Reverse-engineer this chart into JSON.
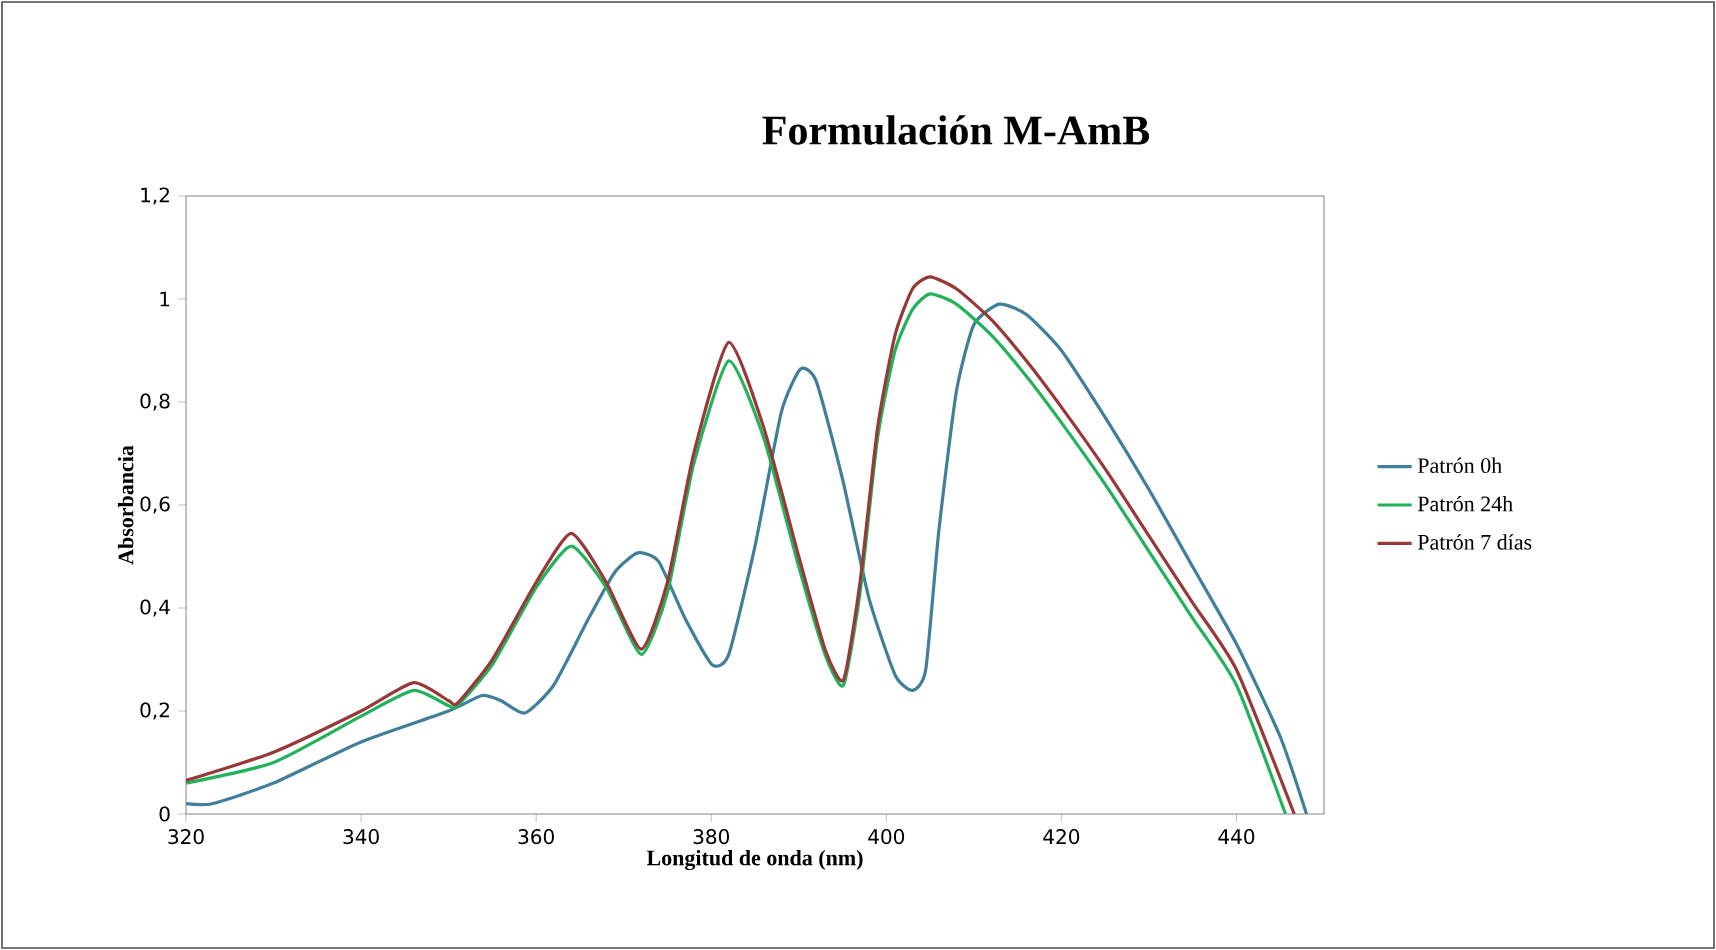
{
  "chart_data": {
    "type": "line",
    "title": "**Formulación M-AmB**",
    "xlabel": "**Longitud de onda (nm)**",
    "ylabel": "**Absorbancia**",
    "xlim": [
      320,
      450
    ],
    "xticks": [
      320,
      340,
      360,
      380,
      400,
      420,
      440
    ],
    "ylim": [
      0,
      1.2
    ],
    "yticks": [
      0,
      {
        "value": 0.2,
        "label": "0,2"
      },
      {
        "value": 0.4,
        "label": "0,4"
      },
      {
        "value": 0.6,
        "label": "0,6"
      },
      {
        "value": 0.8,
        "label": "0,8"
      },
      1,
      {
        "value": 1.2,
        "label": "1,2"
      }
    ],
    "grid": false,
    "legend": "right",
    "series": [
      {
        "name": "Patrón 0h",
        "color": "#3f7f9b",
        "x": [
          320,
          323,
          330,
          340,
          350,
          353.8,
          356,
          358.7,
          362,
          366,
          369,
          371.6,
          374,
          377,
          380.1,
          382,
          385,
          388,
          390.2,
          392,
          395,
          398,
          401,
          403,
          404.5,
          406,
          408,
          410,
          412.9,
          416,
          420,
          425,
          430,
          435,
          440,
          445,
          448
        ],
        "values": [
          0.02,
          0.02,
          0.06,
          0.14,
          0.2,
          0.23,
          0.22,
          0.196,
          0.25,
          0.38,
          0.47,
          0.507,
          0.49,
          0.38,
          0.29,
          0.31,
          0.52,
          0.78,
          0.864,
          0.84,
          0.65,
          0.42,
          0.27,
          0.24,
          0.28,
          0.55,
          0.82,
          0.95,
          0.99,
          0.97,
          0.9,
          0.77,
          0.63,
          0.48,
          0.33,
          0.15,
          0
        ]
      },
      {
        "name": "Patrón 24h",
        "color": "#22b35a",
        "x": [
          320,
          330,
          340,
          346,
          350,
          351,
          355,
          360,
          364,
          368,
          372,
          375,
          378,
          382,
          386,
          390,
          393,
          395.1,
          397,
          399,
          401,
          403,
          405,
          408,
          412,
          416,
          420,
          425,
          430,
          435,
          440,
          445.6
        ],
        "values": [
          0.06,
          0.1,
          0.19,
          0.24,
          0.21,
          0.21,
          0.29,
          0.44,
          0.52,
          0.44,
          0.31,
          0.43,
          0.68,
          0.88,
          0.73,
          0.48,
          0.31,
          0.25,
          0.43,
          0.73,
          0.9,
          0.98,
          1.01,
          0.99,
          0.93,
          0.85,
          0.76,
          0.64,
          0.51,
          0.38,
          0.25,
          0
        ]
      },
      {
        "name": "Patrón 7 días",
        "color": "#983838",
        "x": [
          320,
          330,
          340,
          346,
          350,
          351,
          355,
          360,
          364,
          368,
          372,
          375,
          378,
          382,
          386,
          390,
          393,
          395.1,
          397,
          399,
          401,
          403,
          405,
          408,
          412,
          416,
          420,
          425,
          430,
          435,
          440,
          446.6
        ],
        "values": [
          0.065,
          0.12,
          0.2,
          0.255,
          0.22,
          0.215,
          0.3,
          0.45,
          0.545,
          0.45,
          0.32,
          0.45,
          0.7,
          0.916,
          0.75,
          0.5,
          0.32,
          0.26,
          0.45,
          0.75,
          0.93,
          1.02,
          1.043,
          1.02,
          0.96,
          0.88,
          0.79,
          0.67,
          0.54,
          0.41,
          0.28,
          0
        ]
      }
    ]
  }
}
